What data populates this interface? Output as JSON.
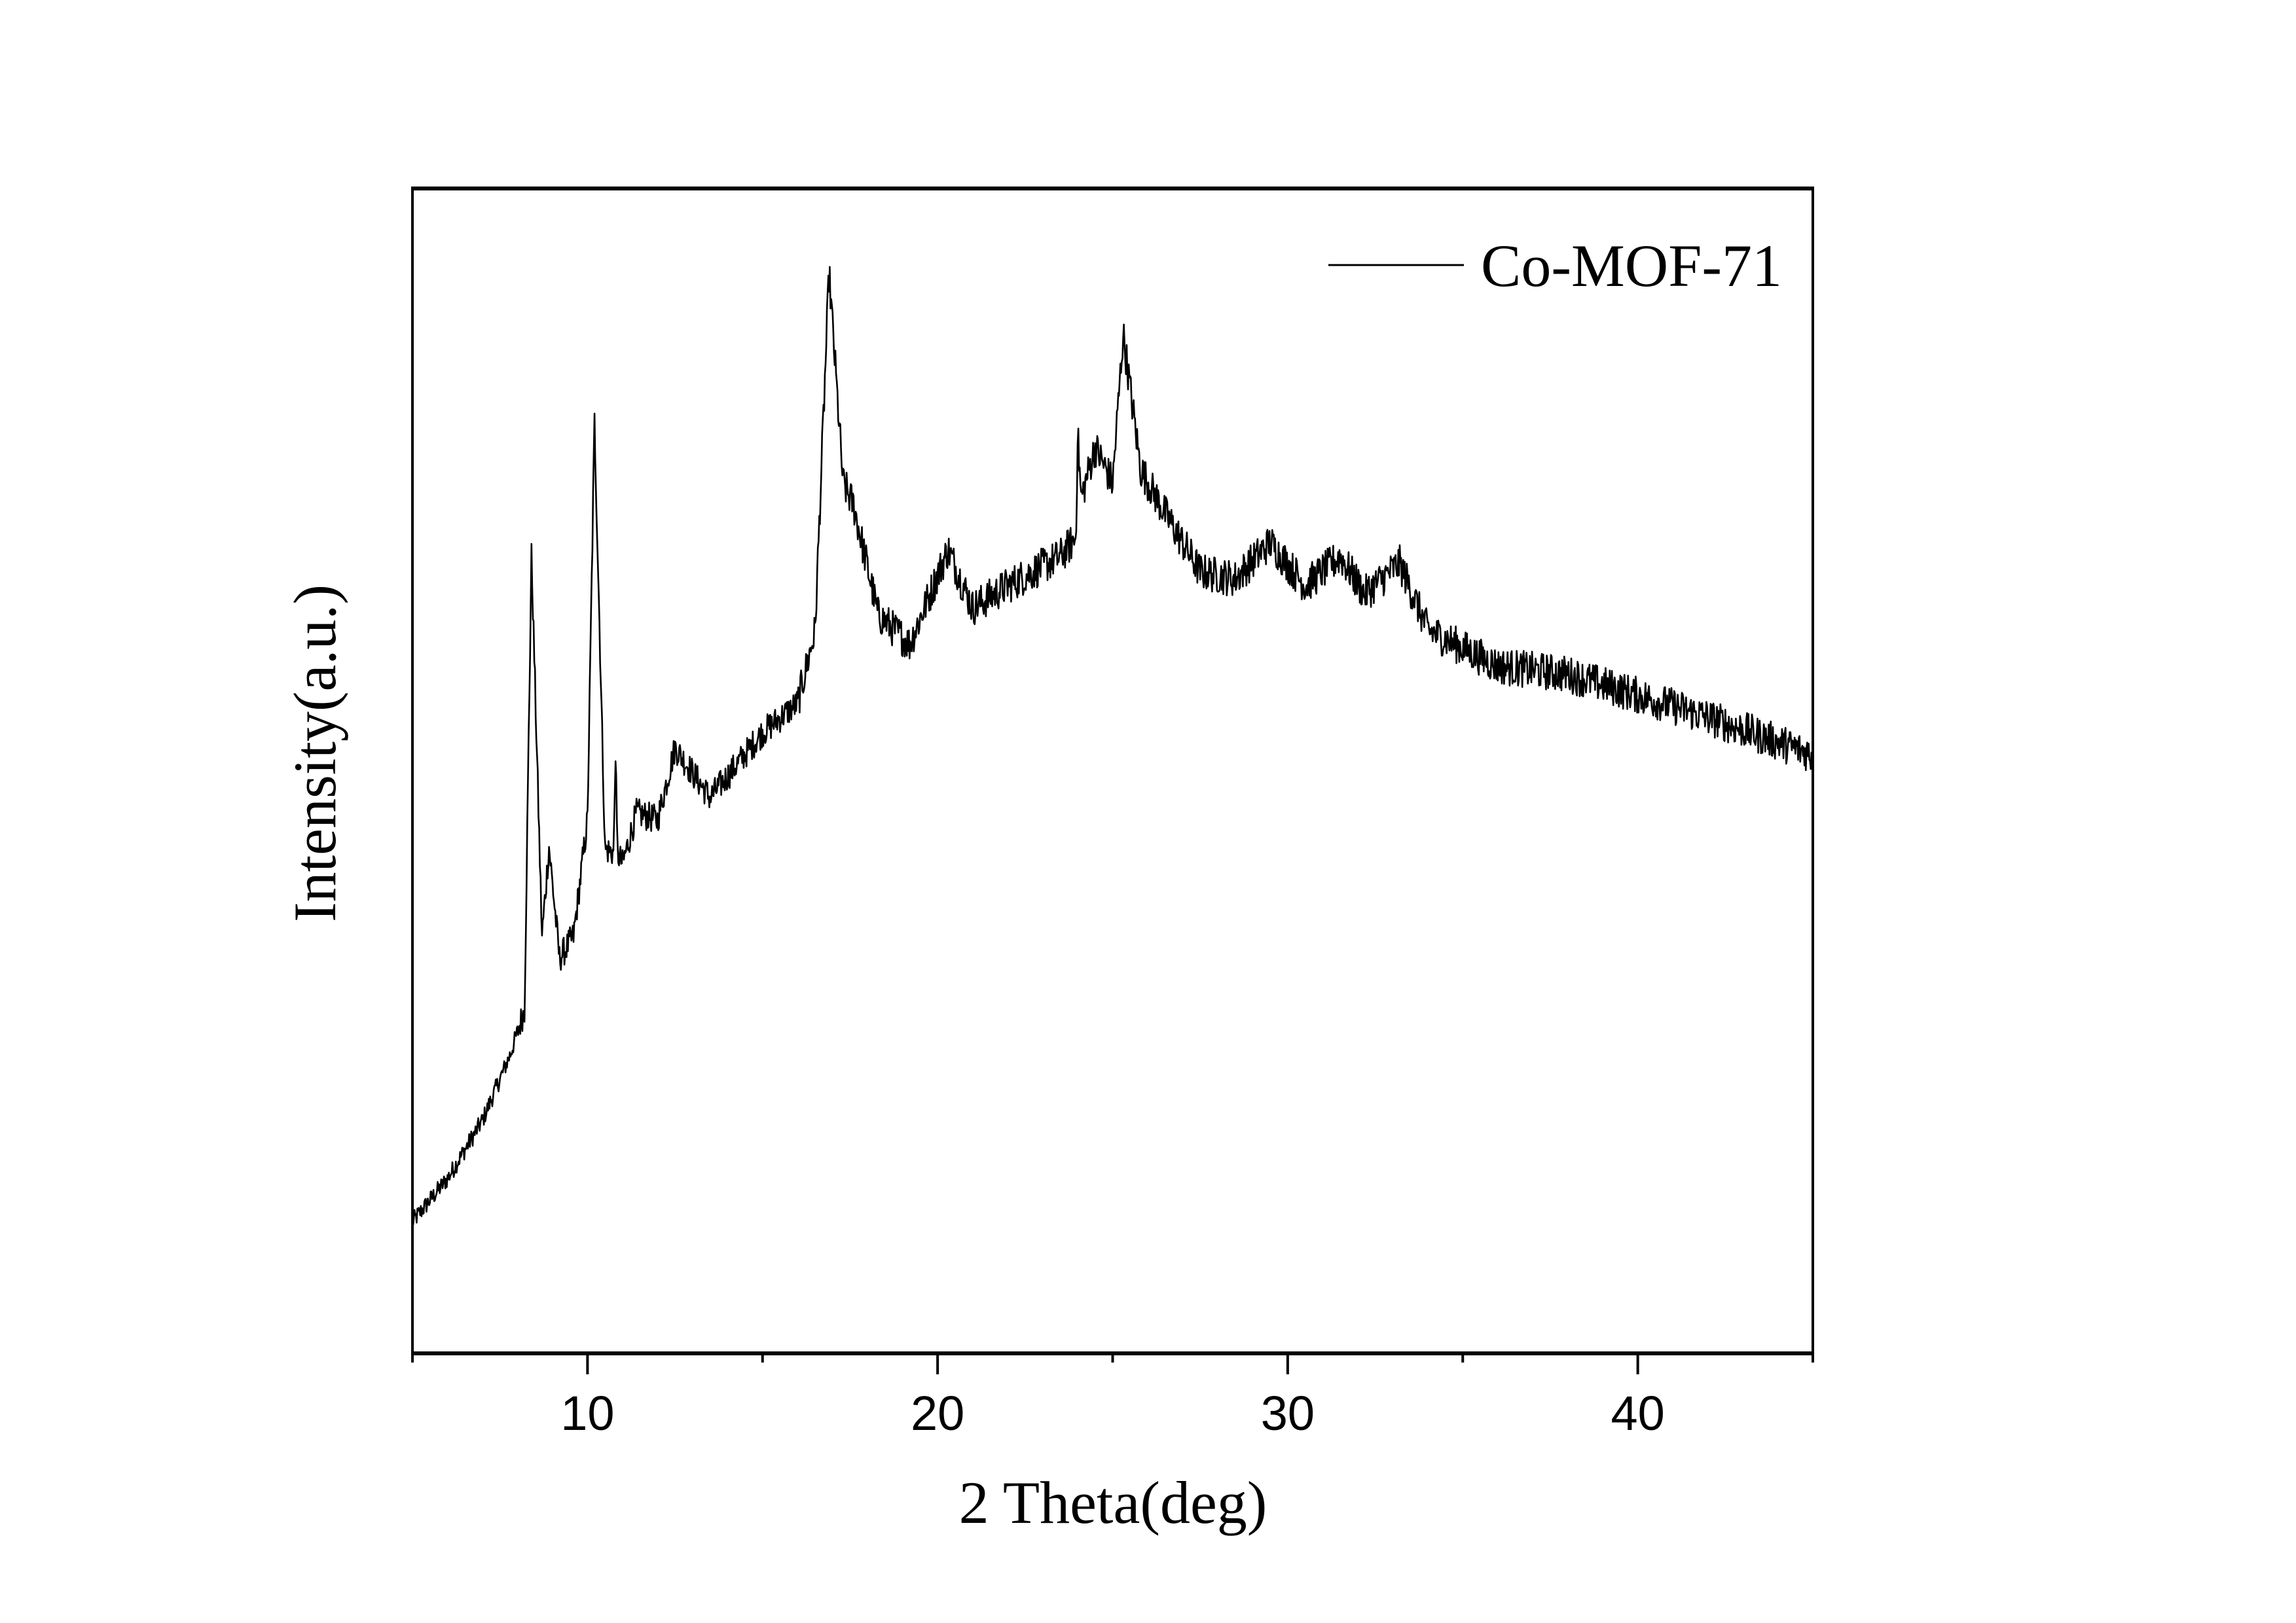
{
  "chart_data": {
    "type": "line",
    "title": "",
    "xlabel": "2 Theta(deg)",
    "ylabel": "Intensity(a.u.)",
    "xlim": [
      5,
      45
    ],
    "ylim": [
      0,
      100
    ],
    "x_ticks": [
      10,
      20,
      30,
      40
    ],
    "x_tick_labels": [
      "10",
      "20",
      "30",
      "40"
    ],
    "x_minor_ticks": [
      5,
      15,
      25,
      35,
      45
    ],
    "y_ticks": [],
    "grid": false,
    "legend": {
      "position": "top-right",
      "entries": [
        "Co-MOF-71"
      ]
    },
    "series": [
      {
        "name": "Co-MOF-71",
        "color": "#000000",
        "noise_amplitude": 1.6,
        "x": [
          5,
          6,
          7,
          7.8,
          8.2,
          8.4,
          8.7,
          8.9,
          9.2,
          9.6,
          10.0,
          10.2,
          10.5,
          10.75,
          10.8,
          10.85,
          11.0,
          11.4,
          12.0,
          12.5,
          13.5,
          15,
          16,
          16.5,
          16.9,
          17.3,
          17.6,
          18.3,
          19.2,
          20.3,
          21,
          22,
          23.5,
          23.95,
          24.0,
          24.1,
          24.5,
          25,
          25.3,
          25.8,
          26.5,
          27.5,
          28.5,
          29.5,
          30.5,
          31.5,
          32.2,
          33.2,
          34,
          36,
          38,
          40,
          42,
          45
        ],
        "y": [
          11.3,
          15,
          20,
          25.7,
          29.5,
          68.4,
          35.8,
          43.5,
          33.9,
          35.8,
          45.8,
          80,
          43.3,
          43,
          52,
          43,
          42,
          46.4,
          45.8,
          52,
          47.7,
          53.3,
          55.8,
          62,
          92.7,
          74.7,
          72.8,
          63.4,
          60.9,
          69,
          64,
          65.9,
          68.4,
          70,
          79,
          73.4,
          77.8,
          74.7,
          87.5,
          75.9,
          72.1,
          67.1,
          66.5,
          69.6,
          65.9,
          68.4,
          65.2,
          67.8,
          62.1,
          59,
          58.3,
          56.5,
          54.6,
          51.4
        ]
      }
    ]
  }
}
